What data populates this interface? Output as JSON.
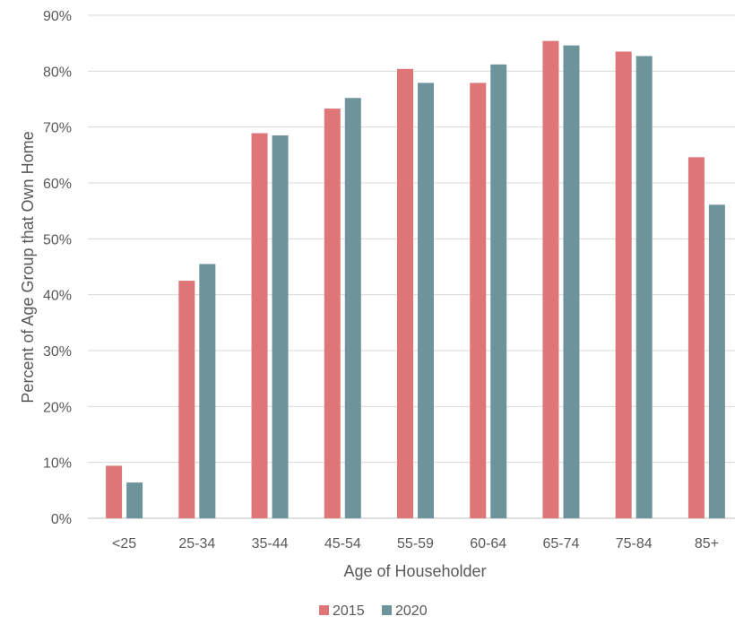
{
  "chart_data": {
    "type": "bar",
    "title": "",
    "xlabel": "Age of Householder",
    "ylabel": "Percent of Age Group that Own Home",
    "categories": [
      "<25",
      "25-34",
      "35-44",
      "45-54",
      "55-59",
      "60-64",
      "65-74",
      "75-84",
      "85+"
    ],
    "series": [
      {
        "name": "2015",
        "color": "#DE7577",
        "values": [
          9.4,
          42.5,
          68.9,
          73.3,
          80.4,
          77.9,
          85.4,
          83.5,
          64.6
        ]
      },
      {
        "name": "2020",
        "color": "#6E949B",
        "values": [
          6.4,
          45.5,
          68.5,
          75.2,
          77.9,
          81.2,
          84.6,
          82.7,
          56.1
        ]
      }
    ],
    "ylim": [
      0,
      90
    ],
    "yticks": [
      "0%",
      "10%",
      "20%",
      "30%",
      "40%",
      "50%",
      "60%",
      "70%",
      "80%",
      "90%"
    ],
    "grid": true,
    "legend_position": "bottom"
  }
}
